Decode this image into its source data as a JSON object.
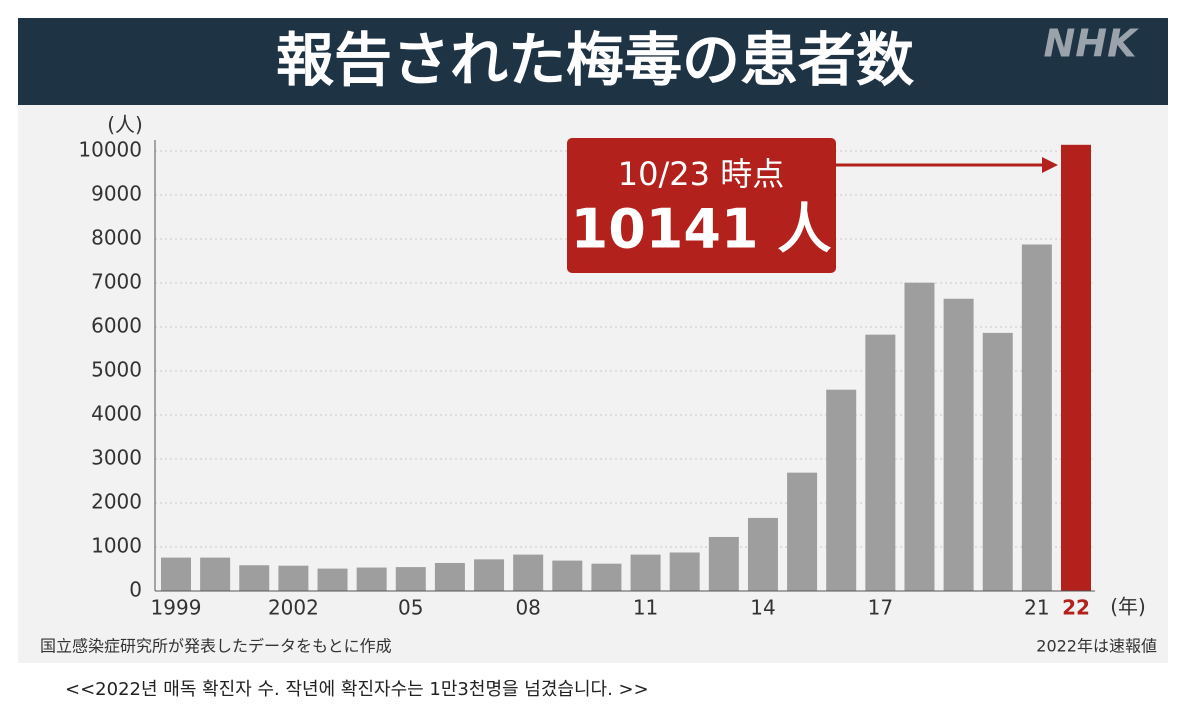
{
  "header": {
    "title": "報告された梅毒の患者数",
    "logo": "NHK"
  },
  "chart_data": {
    "type": "bar",
    "y_label": "(人)",
    "x_label": "(年)",
    "categories": [
      "1999",
      null,
      null,
      "2002",
      null,
      null,
      "05",
      null,
      null,
      "08",
      null,
      null,
      "11",
      null,
      null,
      "14",
      null,
      null,
      "17",
      null,
      null,
      null,
      "21",
      "22"
    ],
    "values": [
      759,
      759,
      585,
      575,
      509,
      533,
      543,
      637,
      719,
      827,
      691,
      621,
      827,
      875,
      1228,
      1661,
      2690,
      4575,
      5826,
      7007,
      6642,
      5867,
      7875,
      10141
    ],
    "value_labels": [
      null,
      null,
      null,
      null,
      null,
      null,
      null,
      null,
      null,
      null,
      null,
      null,
      null,
      null,
      null,
      null,
      null,
      null,
      null,
      null,
      null,
      null,
      null,
      "10141 人"
    ],
    "colors": [
      "#9e9e9e",
      "#9e9e9e",
      "#9e9e9e",
      "#9e9e9e",
      "#9e9e9e",
      "#9e9e9e",
      "#9e9e9e",
      "#9e9e9e",
      "#9e9e9e",
      "#9e9e9e",
      "#9e9e9e",
      "#9e9e9e",
      "#9e9e9e",
      "#9e9e9e",
      "#9e9e9e",
      "#9e9e9e",
      "#9e9e9e",
      "#9e9e9e",
      "#9e9e9e",
      "#9e9e9e",
      "#9e9e9e",
      "#9e9e9e",
      "#9e9e9e",
      "#b3211c"
    ],
    "annotation": "10/23 時点",
    "ylim": [
      0,
      10000
    ],
    "yticks": [
      0,
      1000,
      2000,
      3000,
      4000,
      5000,
      6000,
      7000,
      8000,
      9000,
      10000
    ],
    "grid": true
  },
  "source": "国立感染症研究所が発表したデータをもとに作成",
  "note": "2022年は速報値",
  "caption": "<<2022년 매독 확진자 수. 작년에 확진자수는 1만3천명을 넘겼습니다. >>"
}
